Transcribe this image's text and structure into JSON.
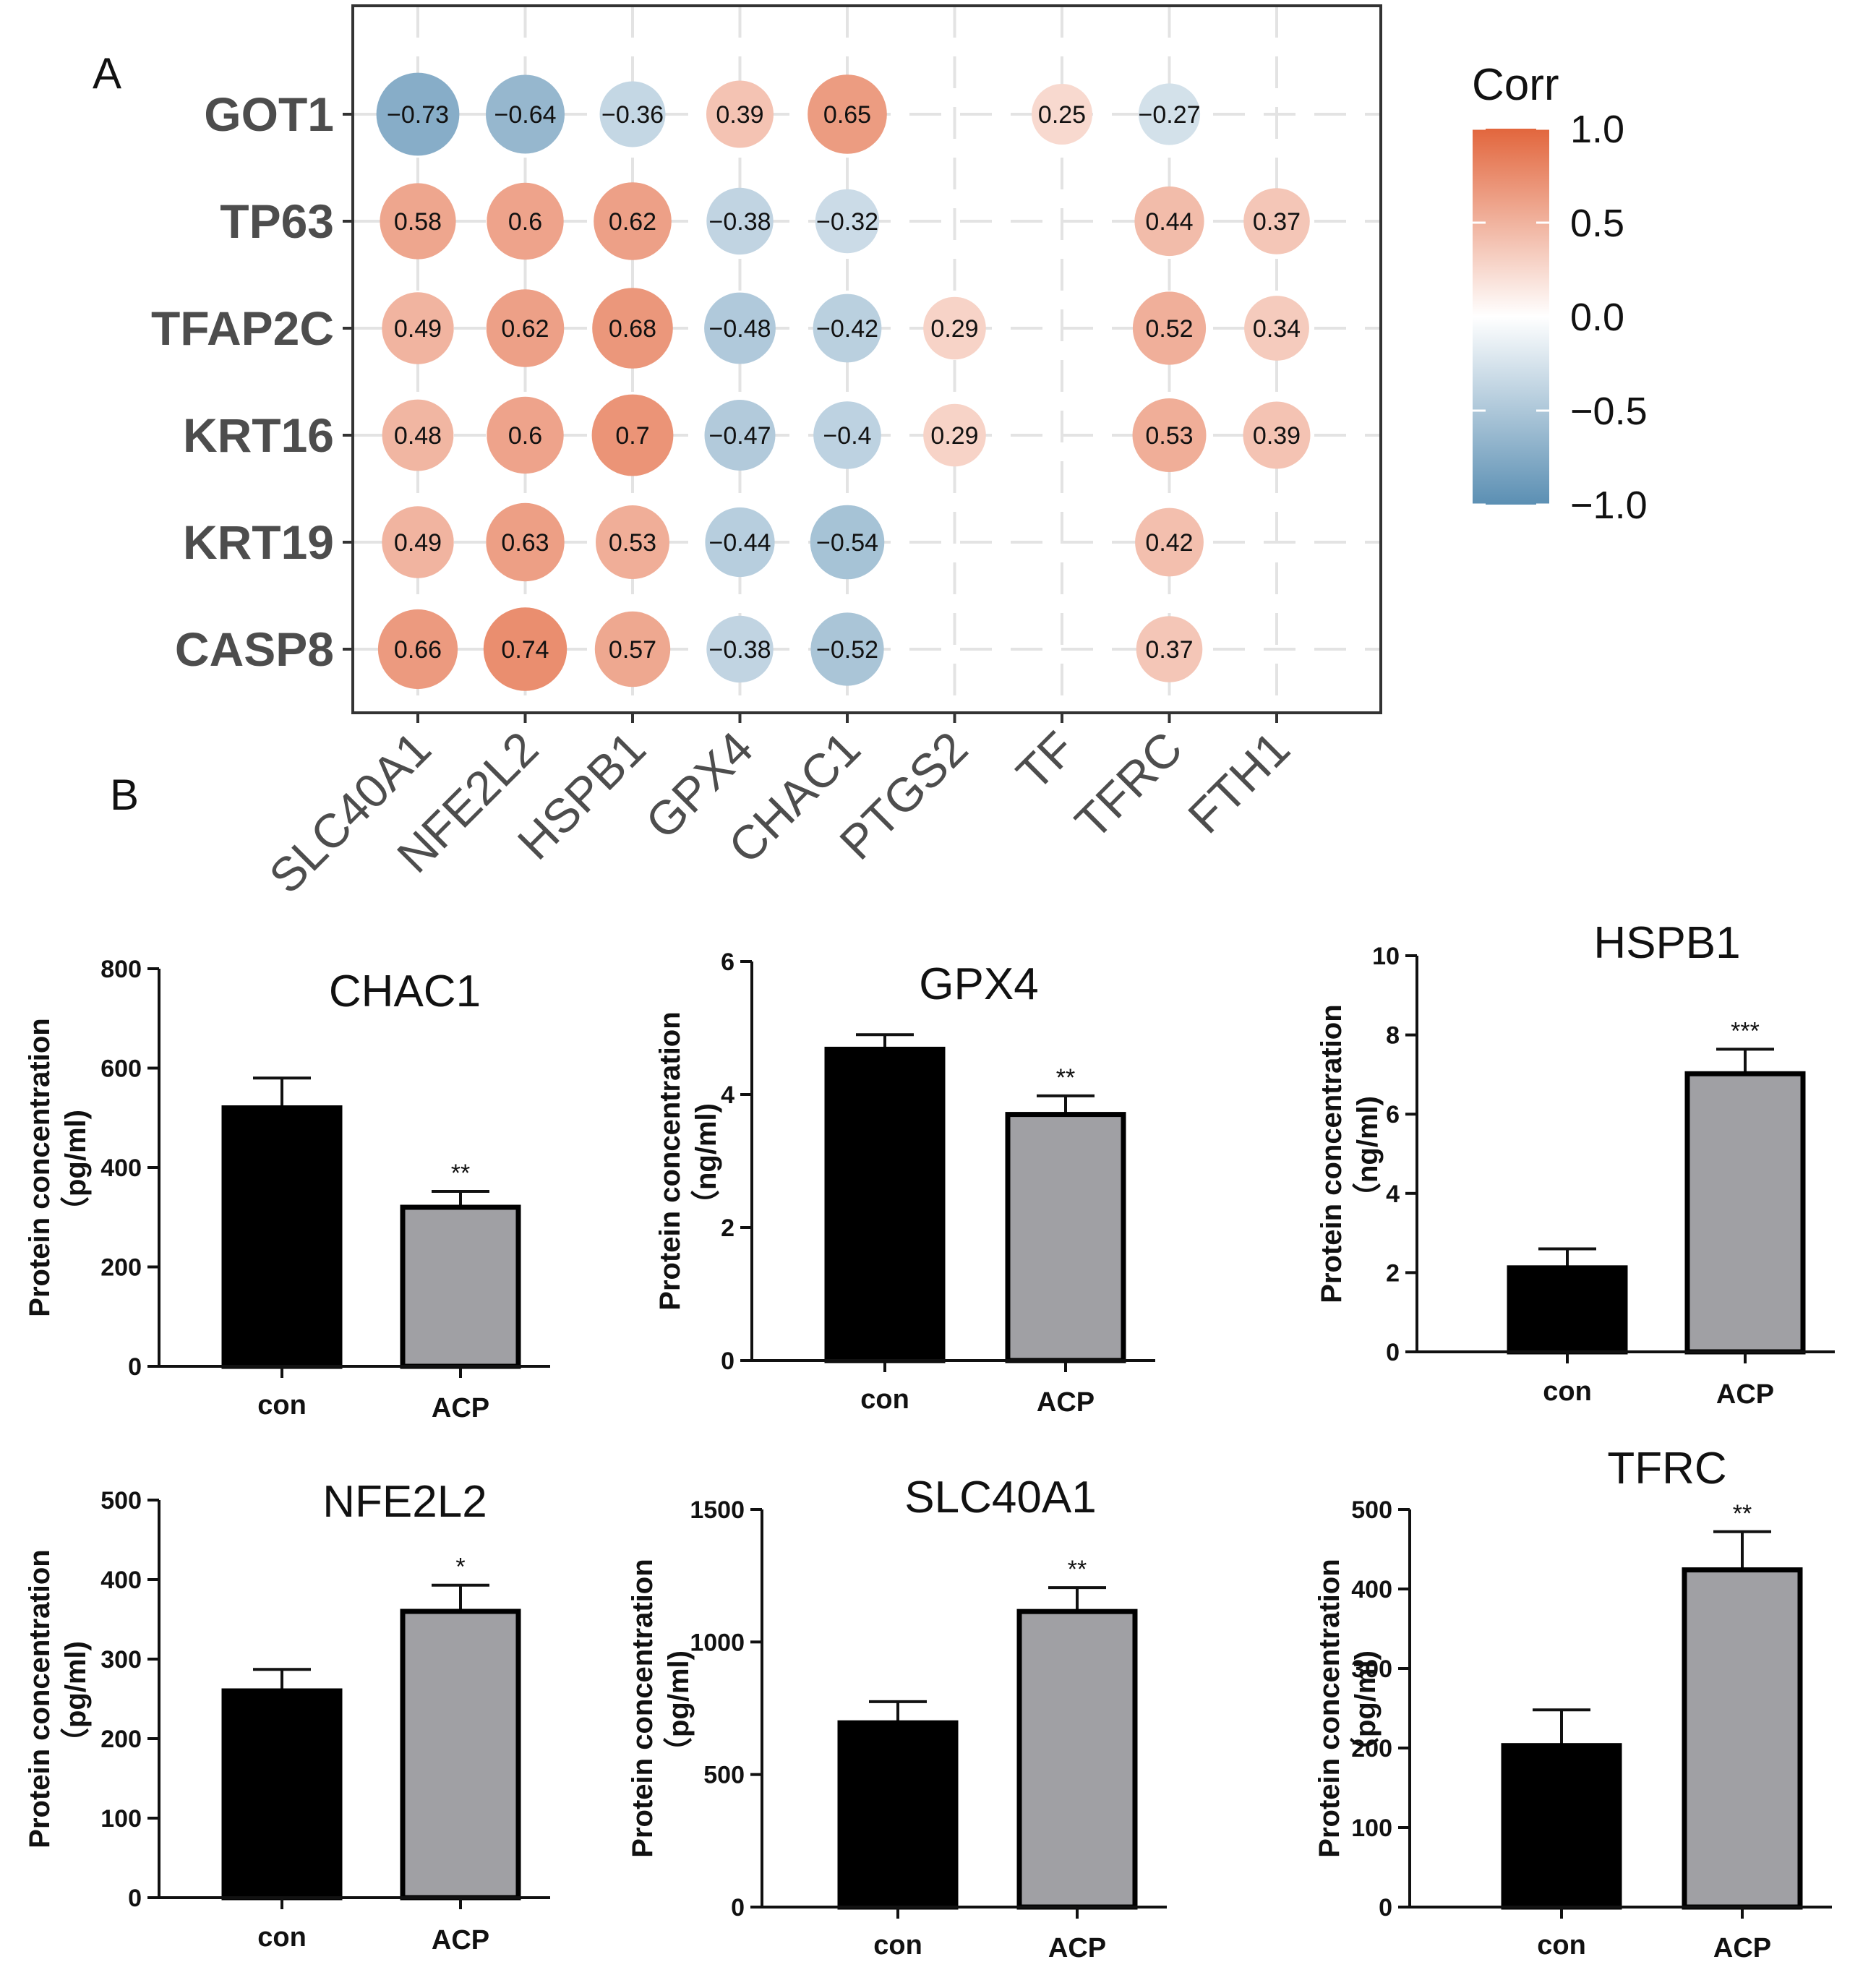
{
  "figure": {
    "panel_a_label": "A",
    "panel_b_label": "B"
  },
  "chart_data": [
    {
      "type": "heatmap",
      "subtype": "correlation-bubble",
      "rows": [
        "GOT1",
        "TP63",
        "TFAP2C",
        "KRT16",
        "KRT19",
        "CASP8"
      ],
      "columns": [
        "SLC40A1",
        "NFE2L2",
        "HSPB1",
        "GPX4",
        "CHAC1",
        "PTGS2",
        "TF",
        "TFRC",
        "FTH1"
      ],
      "values": [
        [
          -0.73,
          -0.64,
          -0.36,
          0.39,
          0.65,
          null,
          0.25,
          -0.27,
          null
        ],
        [
          0.58,
          0.6,
          0.62,
          -0.38,
          -0.32,
          null,
          null,
          0.44,
          0.37
        ],
        [
          0.49,
          0.62,
          0.68,
          -0.48,
          -0.42,
          0.29,
          null,
          0.52,
          0.34
        ],
        [
          0.48,
          0.6,
          0.7,
          -0.47,
          -0.4,
          0.29,
          null,
          0.53,
          0.39
        ],
        [
          0.49,
          0.63,
          0.53,
          -0.44,
          -0.54,
          null,
          null,
          0.42,
          null
        ],
        [
          0.66,
          0.74,
          0.57,
          -0.38,
          -0.52,
          null,
          null,
          0.37,
          null
        ]
      ],
      "value_labels": [
        [
          "−0.73",
          "−0.64",
          "−0.36",
          "0.39",
          "0.65",
          "",
          "0.25",
          "−0.27",
          ""
        ],
        [
          "0.58",
          "0.6",
          "0.62",
          "−0.38",
          "−0.32",
          "",
          "",
          "0.44",
          "0.37"
        ],
        [
          "0.49",
          "0.62",
          "0.68",
          "−0.48",
          "−0.42",
          "0.29",
          "",
          "0.52",
          "0.34"
        ],
        [
          "0.48",
          "0.6",
          "0.7",
          "−0.47",
          "−0.4",
          "0.29",
          "",
          "0.53",
          "0.39"
        ],
        [
          "0.49",
          "0.63",
          "0.53",
          "−0.44",
          "−0.54",
          "",
          "",
          "0.42",
          ""
        ],
        [
          "0.66",
          "0.74",
          "0.57",
          "−0.38",
          "−0.52",
          "",
          "",
          "0.37",
          ""
        ]
      ],
      "legend": {
        "title": "Corr",
        "range": [
          -1.0,
          1.0
        ],
        "tick_values": [
          1.0,
          0.5,
          0.0,
          -0.5,
          -1.0
        ],
        "tick_labels": [
          "1.0",
          "0.5",
          "0.0",
          "−0.5",
          "−1.0"
        ],
        "position": "right"
      },
      "colors": {
        "negative": "#5b8fb3",
        "zero": "#ffffff",
        "positive": "#e2663d"
      },
      "grid": true
    },
    {
      "type": "bar",
      "title": "CHAC1",
      "categories": [
        "con",
        "ACP"
      ],
      "values": [
        520,
        320
      ],
      "errors": [
        60,
        32
      ],
      "significance": [
        "",
        "**"
      ],
      "ylabel": "Protein concentration\n（pg/ml)",
      "ylabel_lines": [
        "Protein concentration",
        "（pg/ml)"
      ],
      "ylim": [
        0,
        800
      ],
      "yticks": [
        0,
        200,
        400,
        600,
        800
      ],
      "ytick_labels": [
        "0",
        "200",
        "400",
        "600",
        "800"
      ],
      "bar_colors": [
        "#000000",
        "#a0a0a4"
      ]
    },
    {
      "type": "bar",
      "title": "GPX4",
      "categories": [
        "con",
        "ACP"
      ],
      "values": [
        4.68,
        3.7
      ],
      "errors": [
        0.22,
        0.28
      ],
      "significance": [
        "",
        "**"
      ],
      "ylabel": "Protein concentration\n（ng/ml)",
      "ylabel_lines": [
        "Protein concentration",
        "（ng/ml)"
      ],
      "ylim": [
        0,
        6
      ],
      "yticks": [
        0,
        2,
        4,
        6
      ],
      "ytick_labels": [
        "0",
        "2",
        "4",
        "6"
      ],
      "bar_colors": [
        "#000000",
        "#a0a0a4"
      ]
    },
    {
      "type": "bar",
      "title": "HSPB1",
      "categories": [
        "con",
        "ACP"
      ],
      "values": [
        2.12,
        7.02
      ],
      "errors": [
        0.48,
        0.62
      ],
      "significance": [
        "",
        "***"
      ],
      "ylabel": "Protein concentration\n（ng/ml)",
      "ylabel_lines": [
        "Protein concentration",
        "（ng/ml)"
      ],
      "ylim": [
        0,
        10
      ],
      "yticks": [
        0,
        2,
        4,
        6,
        8,
        10
      ],
      "ytick_labels": [
        "0",
        "2",
        "4",
        "6",
        "8",
        "10"
      ],
      "bar_colors": [
        "#000000",
        "#a0a0a4"
      ]
    },
    {
      "type": "bar",
      "title": "NFE2L2",
      "categories": [
        "con",
        "ACP"
      ],
      "values": [
        260,
        360
      ],
      "errors": [
        27,
        33
      ],
      "significance": [
        "",
        "*"
      ],
      "ylabel": "Protein concentration\n（pg/ml)",
      "ylabel_lines": [
        "Protein concentration",
        "（pg/ml)"
      ],
      "ylim": [
        0,
        500
      ],
      "yticks": [
        0,
        100,
        200,
        300,
        400,
        500
      ],
      "ytick_labels": [
        "0",
        "100",
        "200",
        "300",
        "400",
        "500"
      ],
      "bar_colors": [
        "#000000",
        "#a0a0a4"
      ]
    },
    {
      "type": "bar",
      "title": "SLC40A1",
      "categories": [
        "con",
        "ACP"
      ],
      "values": [
        695,
        1115
      ],
      "errors": [
        80,
        90
      ],
      "significance": [
        "",
        "**"
      ],
      "ylabel": "Protein concentration\n（pg/ml)",
      "ylabel_lines": [
        "Protein concentration",
        "（pg/ml)"
      ],
      "ylim": [
        0,
        1500
      ],
      "yticks": [
        0,
        500,
        1000,
        1500
      ],
      "ytick_labels": [
        "0",
        "500",
        "1000",
        "1500"
      ],
      "bar_colors": [
        "#000000",
        "#a0a0a4"
      ]
    },
    {
      "type": "bar",
      "title": "TFRC",
      "categories": [
        "con",
        "ACP"
      ],
      "values": [
        203,
        424
      ],
      "errors": [
        45,
        48
      ],
      "significance": [
        "",
        "**"
      ],
      "ylabel": "Protein concentration\n（pg/ml)",
      "ylabel_lines": [
        "Protein concentration",
        "（pg/ml)"
      ],
      "ylim": [
        0,
        500
      ],
      "yticks": [
        0,
        100,
        200,
        300,
        400,
        500
      ],
      "ytick_labels": [
        "0",
        "100",
        "200",
        "300",
        "400",
        "500"
      ],
      "bar_colors": [
        "#000000",
        "#a0a0a4"
      ]
    }
  ]
}
